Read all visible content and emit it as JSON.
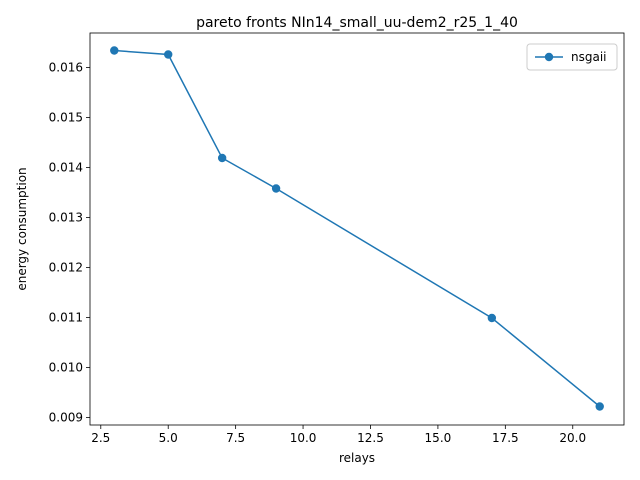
{
  "chart_data": {
    "type": "line",
    "title": "pareto fronts NIn14_small_uu-dem2_r25_1_40",
    "xlabel": "relays",
    "ylabel": "energy consumption",
    "xlim": [
      2.1,
      21.9
    ],
    "ylim": [
      0.00885,
      0.01669
    ],
    "xticks": [
      2.5,
      5.0,
      7.5,
      10.0,
      12.5,
      15.0,
      17.5,
      20.0
    ],
    "xtick_labels": [
      "2.5",
      "5.0",
      "7.5",
      "10.0",
      "12.5",
      "15.0",
      "17.5",
      "20.0"
    ],
    "yticks": [
      0.009,
      0.01,
      0.011,
      0.012,
      0.013,
      0.014,
      0.015,
      0.016
    ],
    "ytick_labels": [
      "0.009",
      "0.010",
      "0.011",
      "0.012",
      "0.013",
      "0.014",
      "0.015",
      "0.016"
    ],
    "grid": false,
    "legend_position": "upper right",
    "series": [
      {
        "name": "nsgaii",
        "color": "#1f77b4",
        "marker": "circle",
        "x": [
          3,
          5,
          7,
          9,
          17,
          21
        ],
        "y": [
          0.01634,
          0.01626,
          0.01419,
          0.01358,
          0.01099,
          0.00922
        ]
      }
    ]
  }
}
